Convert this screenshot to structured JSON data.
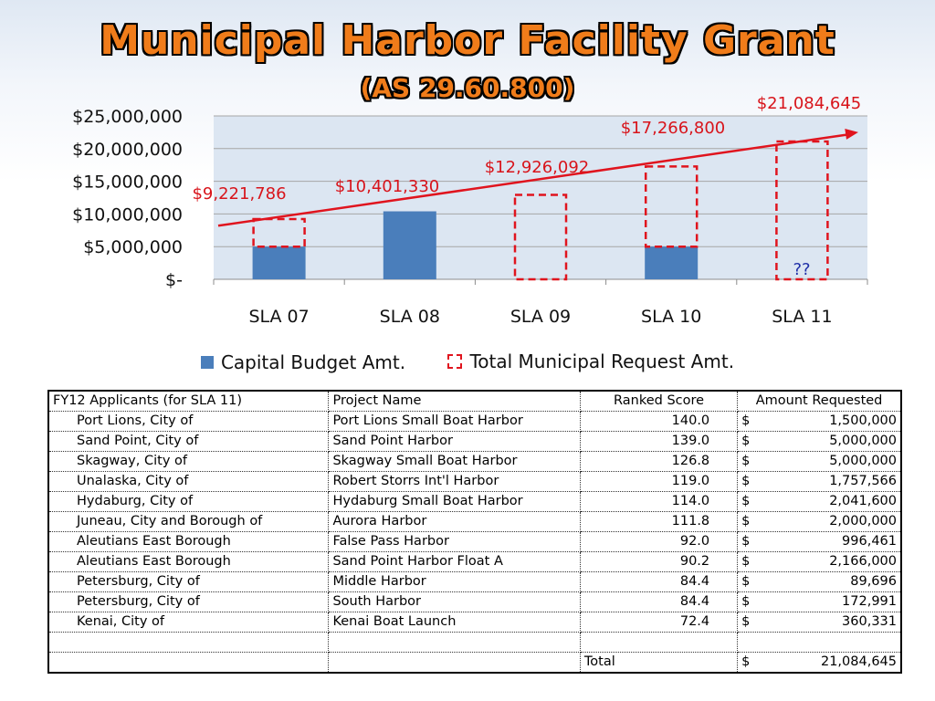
{
  "title": "Municipal Harbor Facility Grant",
  "subtitle": "(AS 29.60.800)",
  "chart_data": {
    "type": "bar",
    "categories": [
      "SLA 07",
      "SLA 08",
      "SLA 09",
      "SLA 10",
      "SLA 11"
    ],
    "series": [
      {
        "name": "Capital Budget Amt.",
        "values": [
          5000000,
          10401330,
          0,
          5000000,
          0
        ],
        "color": "#4a7ebb"
      },
      {
        "name": "Total Municipal Request Amt.",
        "values": [
          9221786,
          10401330,
          12926092,
          17266800,
          21084645
        ],
        "color": "#e0141e"
      }
    ],
    "data_labels": [
      "$9,221,786",
      "$10,401,330",
      "$12,926,092",
      "$17,266,800",
      "$21,084,645"
    ],
    "unknown_label": "??",
    "y_ticks": [
      "$-",
      "$5,000,000",
      "$10,000,000",
      "$15,000,000",
      "$20,000,000",
      "$25,000,000"
    ],
    "ylim": [
      0,
      25000000
    ],
    "trend": {
      "from": 8200000,
      "to": 22500000,
      "color": "#e0141e"
    },
    "grid": true,
    "legend": "bottom"
  },
  "legend": {
    "capital": "Capital Budget Amt.",
    "total": "Total Municipal Request Amt."
  },
  "table": {
    "headers": [
      "FY12 Applicants (for SLA 11)",
      "Project Name",
      "Ranked Score",
      "Amount Requested"
    ],
    "rows": [
      {
        "applicant": "Port Lions, City of",
        "project": "Port Lions Small Boat Harbor",
        "score": "140.0",
        "currency": "$",
        "amount": "1,500,000"
      },
      {
        "applicant": "Sand Point, City of",
        "project": "Sand Point Harbor",
        "score": "139.0",
        "currency": "$",
        "amount": "5,000,000"
      },
      {
        "applicant": "Skagway, City of",
        "project": "Skagway Small Boat Harbor",
        "score": "126.8",
        "currency": "$",
        "amount": "5,000,000"
      },
      {
        "applicant": "Unalaska, City of",
        "project": "Robert Storrs Int'l Harbor",
        "score": "119.0",
        "currency": "$",
        "amount": "1,757,566"
      },
      {
        "applicant": "Hydaburg, City of",
        "project": "Hydaburg Small Boat Harbor",
        "score": "114.0",
        "currency": "$",
        "amount": "2,041,600"
      },
      {
        "applicant": "Juneau, City and Borough of",
        "project": "Aurora Harbor",
        "score": "111.8",
        "currency": "$",
        "amount": "2,000,000"
      },
      {
        "applicant": "Aleutians East Borough",
        "project": "False Pass Harbor",
        "score": "92.0",
        "currency": "$",
        "amount": "996,461"
      },
      {
        "applicant": "Aleutians East Borough",
        "project": "Sand Point Harbor Float A",
        "score": "90.2",
        "currency": "$",
        "amount": "2,166,000"
      },
      {
        "applicant": "Petersburg, City of",
        "project": "Middle Harbor",
        "score": "84.4",
        "currency": "$",
        "amount": "89,696"
      },
      {
        "applicant": "Petersburg, City of",
        "project": "South Harbor",
        "score": "84.4",
        "currency": "$",
        "amount": "172,991"
      },
      {
        "applicant": "Kenai, City of",
        "project": "Kenai Boat Launch",
        "score": "72.4",
        "currency": "$",
        "amount": "360,331"
      }
    ],
    "total_label": "Total",
    "total_currency": "$",
    "total_amount": "21,084,645"
  }
}
